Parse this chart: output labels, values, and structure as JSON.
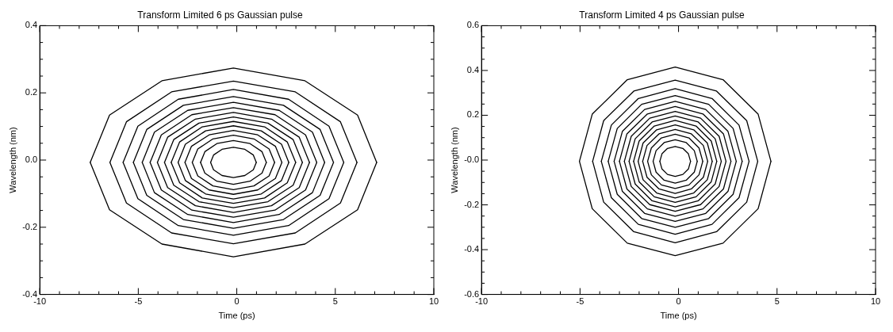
{
  "chart_data": [
    {
      "type": "line",
      "title": "Transform Limited 6 ps Gaussian pulse",
      "xlabel": "Time (ps)",
      "ylabel": "Wavelength (nm)",
      "marker": "none",
      "xlim": [
        -10,
        10
      ],
      "ylim": [
        -0.4,
        0.4
      ],
      "xticks": [
        -10,
        {
          "value": -9,
          "label": null
        },
        {
          "value": -8,
          "label": null
        },
        {
          "value": -7,
          "label": null
        },
        {
          "value": -6,
          "label": null
        },
        -5,
        {
          "value": -4,
          "label": null
        },
        {
          "value": -3,
          "label": null
        },
        {
          "value": -2,
          "label": null
        },
        {
          "value": -1,
          "label": null
        },
        0,
        {
          "value": 1,
          "label": null
        },
        {
          "value": 2,
          "label": null
        },
        {
          "value": 3,
          "label": null
        },
        {
          "value": 4,
          "label": null
        },
        5,
        {
          "value": 6,
          "label": null
        },
        {
          "value": 7,
          "label": null
        },
        {
          "value": 8,
          "label": null
        },
        {
          "value": 9,
          "label": null
        },
        10
      ],
      "yticks": [
        -0.4,
        {
          "value": -0.35,
          "label": null
        },
        {
          "value": -0.3,
          "label": null
        },
        {
          "value": -0.25,
          "label": null
        },
        -0.2,
        {
          "value": -0.15,
          "label": null
        },
        {
          "value": -0.1,
          "label": null
        },
        {
          "value": -0.05,
          "label": null
        },
        {
          "value": 0,
          "label": "0.0"
        },
        {
          "value": 0.05,
          "label": null
        },
        {
          "value": 0.1,
          "label": null
        },
        {
          "value": 0.15,
          "label": null
        },
        0.2,
        {
          "value": 0.25,
          "label": null
        },
        {
          "value": 0.3,
          "label": null
        },
        {
          "value": 0.35,
          "label": null
        },
        0.4
      ],
      "series": [
        {
          "color": "#000000",
          "x": [
            -7.44,
            -6.46,
            -3.8,
            -0.17,
            3.46,
            6.13,
            7.1
          ],
          "values": [
            -0.007,
            0.134,
            0.236,
            0.274,
            0.236,
            0.134,
            -0.007
          ]
        },
        {
          "color": "#000000",
          "x": [
            -7.44,
            -6.46,
            -3.8,
            -0.17,
            3.46,
            6.13,
            7.1
          ],
          "values": [
            -0.007,
            -0.148,
            -0.25,
            -0.288,
            -0.25,
            -0.148,
            -0.007
          ]
        },
        {
          "color": "#000000",
          "x": [
            -6.44,
            -5.6,
            -3.31,
            -0.17,
            2.97,
            5.26,
            6.1
          ],
          "values": [
            -0.007,
            0.114,
            0.203,
            0.235,
            0.203,
            0.114,
            -0.007
          ]
        },
        {
          "color": "#000000",
          "x": [
            -6.44,
            -5.6,
            -3.31,
            -0.17,
            2.97,
            5.26,
            6.1
          ],
          "values": [
            -0.007,
            -0.128,
            -0.217,
            -0.249,
            -0.217,
            -0.128,
            -0.007
          ]
        },
        {
          "color": "#000000",
          "x": [
            -5.77,
            -5.02,
            -2.97,
            -0.17,
            2.63,
            4.68,
            5.43
          ],
          "values": [
            -0.007,
            0.101,
            0.181,
            0.21,
            0.181,
            0.101,
            -0.007
          ]
        },
        {
          "color": "#000000",
          "x": [
            -5.77,
            -5.02,
            -2.97,
            -0.17,
            2.63,
            4.68,
            5.43
          ],
          "values": [
            -0.007,
            -0.115,
            -0.195,
            -0.224,
            -0.195,
            -0.115,
            -0.007
          ]
        },
        {
          "color": "#000000",
          "x": [
            -5.25,
            -4.57,
            -2.71,
            -0.17,
            2.37,
            4.23,
            4.91
          ],
          "values": [
            -0.007,
            0.091,
            0.163,
            0.189,
            0.163,
            0.091,
            -0.007
          ]
        },
        {
          "color": "#000000",
          "x": [
            -5.25,
            -4.57,
            -2.71,
            -0.17,
            2.37,
            4.23,
            4.91
          ],
          "values": [
            -0.007,
            -0.105,
            -0.177,
            -0.203,
            -0.177,
            -0.105,
            -0.007
          ]
        },
        {
          "color": "#000000",
          "x": [
            -4.8,
            -4.18,
            -2.49,
            -0.17,
            2.15,
            3.84,
            4.46
          ],
          "values": [
            -0.007,
            0.083,
            0.148,
            0.172,
            0.148,
            0.083,
            -0.007
          ]
        },
        {
          "color": "#000000",
          "x": [
            -4.8,
            -4.18,
            -2.49,
            -0.17,
            2.15,
            3.84,
            4.46
          ],
          "values": [
            -0.007,
            -0.097,
            -0.162,
            -0.186,
            -0.162,
            -0.097,
            -0.007
          ]
        },
        {
          "color": "#000000",
          "x": [
            -4.4,
            -3.83,
            -2.28,
            -0.17,
            1.94,
            3.49,
            4.06
          ],
          "values": [
            -0.007,
            0.075,
            0.135,
            0.156,
            0.135,
            0.075,
            -0.007
          ]
        },
        {
          "color": "#000000",
          "x": [
            -4.4,
            -3.83,
            -2.28,
            -0.17,
            1.94,
            3.49,
            4.06
          ],
          "values": [
            -0.007,
            -0.089,
            -0.149,
            -0.17,
            -0.149,
            -0.089,
            -0.007
          ]
        },
        {
          "color": "#000000",
          "x": [
            -4.03,
            -3.51,
            -2.1,
            -0.17,
            1.76,
            3.17,
            3.69
          ],
          "values": [
            -0.007,
            0.068,
            0.122,
            0.142,
            0.122,
            0.068,
            -0.007
          ]
        },
        {
          "color": "#000000",
          "x": [
            -4.03,
            -3.51,
            -2.1,
            -0.17,
            1.76,
            3.17,
            3.69
          ],
          "values": [
            -0.007,
            -0.082,
            -0.136,
            -0.156,
            -0.136,
            -0.082,
            -0.007
          ]
        },
        {
          "color": "#000000",
          "x": [
            -3.67,
            -3.2,
            -1.92,
            -0.17,
            1.58,
            2.86,
            3.33
          ],
          "values": [
            -0.007,
            0.061,
            0.11,
            0.128,
            0.11,
            0.061,
            -0.007
          ]
        },
        {
          "color": "#000000",
          "x": [
            -3.67,
            -3.2,
            -1.92,
            -0.17,
            1.58,
            2.86,
            3.33
          ],
          "values": [
            -0.007,
            -0.075,
            -0.124,
            -0.142,
            -0.124,
            -0.075,
            -0.007
          ]
        },
        {
          "color": "#000000",
          "x": [
            -3.33,
            -2.9,
            -1.75,
            -0.17,
            1.41,
            2.56,
            2.99
          ],
          "values": [
            -0.007,
            0.054,
            0.099,
            0.115,
            0.099,
            0.054,
            -0.007
          ]
        },
        {
          "color": "#000000",
          "x": [
            -3.33,
            -2.9,
            -1.75,
            -0.17,
            1.41,
            2.56,
            2.99
          ],
          "values": [
            -0.007,
            -0.068,
            -0.113,
            -0.129,
            -0.113,
            -0.068,
            -0.007
          ]
        },
        {
          "color": "#000000",
          "x": [
            -2.98,
            -2.61,
            -1.58,
            -0.17,
            1.24,
            2.27,
            2.64
          ],
          "values": [
            -0.007,
            0.047,
            0.087,
            0.102,
            0.087,
            0.047,
            -0.007
          ]
        },
        {
          "color": "#000000",
          "x": [
            -2.98,
            -2.61,
            -1.58,
            -0.17,
            1.24,
            2.27,
            2.64
          ],
          "values": [
            -0.007,
            -0.061,
            -0.101,
            -0.116,
            -0.101,
            -0.061,
            -0.007
          ]
        },
        {
          "color": "#000000",
          "x": [
            -2.63,
            -2.3,
            -1.4,
            -0.17,
            1.06,
            1.96,
            2.29
          ],
          "values": [
            -0.007,
            0.041,
            0.075,
            0.088,
            0.075,
            0.041,
            -0.007
          ]
        },
        {
          "color": "#000000",
          "x": [
            -2.63,
            -2.3,
            -1.4,
            -0.17,
            1.06,
            1.96,
            2.29
          ],
          "values": [
            -0.007,
            -0.055,
            -0.089,
            -0.102,
            -0.089,
            -0.055,
            -0.007
          ]
        },
        {
          "color": "#000000",
          "x": [
            -2.26,
            -1.98,
            -1.21,
            -0.17,
            0.87,
            1.64,
            1.92
          ],
          "values": [
            -0.007,
            0.033,
            0.063,
            0.074,
            0.063,
            0.033,
            -0.007
          ]
        },
        {
          "color": "#000000",
          "x": [
            -2.26,
            -1.98,
            -1.21,
            -0.17,
            0.87,
            1.64,
            1.92
          ],
          "values": [
            -0.007,
            -0.047,
            -0.077,
            -0.088,
            -0.077,
            -0.047,
            -0.007
          ]
        },
        {
          "color": "#000000",
          "x": [
            -1.84,
            -1.62,
            -1.01,
            -0.17,
            0.67,
            1.28,
            1.5
          ],
          "values": [
            -0.007,
            0.025,
            0.049,
            0.058,
            0.049,
            0.025,
            -0.007
          ]
        },
        {
          "color": "#000000",
          "x": [
            -1.84,
            -1.62,
            -1.01,
            -0.17,
            0.67,
            1.28,
            1.5
          ],
          "values": [
            -0.007,
            -0.039,
            -0.063,
            -0.072,
            -0.063,
            -0.039,
            -0.007
          ]
        },
        {
          "color": "#000000",
          "x": [
            -1.33,
            -1.18,
            -0.75,
            -0.17,
            0.41,
            0.84,
            0.99
          ],
          "values": [
            -0.007,
            0.015,
            0.032,
            0.038,
            0.032,
            0.015,
            -0.007
          ]
        },
        {
          "color": "#000000",
          "x": [
            -1.33,
            -1.18,
            -0.75,
            -0.17,
            0.41,
            0.84,
            0.99
          ],
          "values": [
            -0.007,
            -0.029,
            -0.046,
            -0.052,
            -0.046,
            -0.029,
            -0.007
          ]
        }
      ]
    },
    {
      "type": "line",
      "title": "Transform Limited 4 ps Gaussian pulse",
      "xlabel": "Time (ps)",
      "ylabel": "Wavelength (nm)",
      "marker": "none",
      "xlim": [
        -10,
        10
      ],
      "ylim": [
        -0.6,
        0.6
      ],
      "xticks": [
        -10,
        {
          "value": -9,
          "label": null
        },
        {
          "value": -8,
          "label": null
        },
        {
          "value": -7,
          "label": null
        },
        {
          "value": -6,
          "label": null
        },
        -5,
        {
          "value": -4,
          "label": null
        },
        {
          "value": -3,
          "label": null
        },
        {
          "value": -2,
          "label": null
        },
        {
          "value": -1,
          "label": null
        },
        0,
        {
          "value": 1,
          "label": null
        },
        {
          "value": 2,
          "label": null
        },
        {
          "value": 3,
          "label": null
        },
        {
          "value": 4,
          "label": null
        },
        5,
        {
          "value": 6,
          "label": null
        },
        {
          "value": 7,
          "label": null
        },
        {
          "value": 8,
          "label": null
        },
        {
          "value": 9,
          "label": null
        },
        10
      ],
      "yticks": [
        -0.6,
        {
          "value": -0.55,
          "label": null
        },
        {
          "value": -0.5,
          "label": null
        },
        {
          "value": -0.45,
          "label": null
        },
        -0.4,
        {
          "value": -0.35,
          "label": null
        },
        {
          "value": -0.3,
          "label": null
        },
        {
          "value": -0.25,
          "label": null
        },
        -0.2,
        {
          "value": -0.15,
          "label": null
        },
        {
          "value": -0.1,
          "label": null
        },
        {
          "value": -0.05,
          "label": null
        },
        {
          "value": 0,
          "label": "-0.0"
        },
        {
          "value": 0.05,
          "label": null
        },
        {
          "value": 0.1,
          "label": null
        },
        {
          "value": 0.15,
          "label": null
        },
        0.2,
        {
          "value": 0.25,
          "label": null
        },
        {
          "value": 0.3,
          "label": null
        },
        {
          "value": 0.35,
          "label": null
        },
        0.4,
        {
          "value": 0.45,
          "label": null
        },
        {
          "value": 0.5,
          "label": null
        },
        {
          "value": 0.55,
          "label": null
        },
        0.6
      ],
      "series": [
        {
          "color": "#000000",
          "x": [
            -5.03,
            -4.38,
            -2.6,
            -0.17,
            2.26,
            4.04,
            4.69
          ],
          "values": [
            -0.006,
            0.205,
            0.359,
            0.415,
            0.359,
            0.205,
            -0.006
          ]
        },
        {
          "color": "#000000",
          "x": [
            -5.03,
            -4.38,
            -2.6,
            -0.17,
            2.26,
            4.04,
            4.69
          ],
          "values": [
            -0.006,
            -0.217,
            -0.371,
            -0.427,
            -0.371,
            -0.217,
            -0.006
          ]
        },
        {
          "color": "#000000",
          "x": [
            -4.36,
            -3.8,
            -2.27,
            -0.17,
            1.93,
            3.46,
            4.02
          ],
          "values": [
            -0.006,
            0.176,
            0.308,
            0.357,
            0.308,
            0.176,
            -0.006
          ]
        },
        {
          "color": "#000000",
          "x": [
            -4.36,
            -3.8,
            -2.27,
            -0.17,
            1.93,
            3.46,
            4.02
          ],
          "values": [
            -0.006,
            -0.188,
            -0.32,
            -0.369,
            -0.32,
            -0.188,
            -0.006
          ]
        },
        {
          "color": "#000000",
          "x": [
            -3.92,
            -3.41,
            -2.04,
            -0.17,
            1.7,
            3.07,
            3.58
          ],
          "values": [
            -0.006,
            0.156,
            0.275,
            0.319,
            0.275,
            0.156,
            -0.006
          ]
        },
        {
          "color": "#000000",
          "x": [
            -3.92,
            -3.41,
            -2.04,
            -0.17,
            1.7,
            3.07,
            3.58
          ],
          "values": [
            -0.006,
            -0.168,
            -0.287,
            -0.331,
            -0.287,
            -0.168,
            -0.006
          ]
        },
        {
          "color": "#000000",
          "x": [
            -3.57,
            -3.11,
            -1.87,
            -0.17,
            1.53,
            2.77,
            3.23
          ],
          "values": [
            -0.006,
            0.141,
            0.249,
            0.288,
            0.249,
            0.141,
            -0.006
          ]
        },
        {
          "color": "#000000",
          "x": [
            -3.57,
            -3.11,
            -1.87,
            -0.17,
            1.53,
            2.77,
            3.23
          ],
          "values": [
            -0.006,
            -0.153,
            -0.261,
            -0.3,
            -0.261,
            -0.153,
            -0.006
          ]
        },
        {
          "color": "#000000",
          "x": [
            -3.27,
            -2.85,
            -1.72,
            -0.17,
            1.38,
            2.51,
            2.93
          ],
          "values": [
            -0.006,
            0.128,
            0.226,
            0.262,
            0.226,
            0.128,
            -0.006
          ]
        },
        {
          "color": "#000000",
          "x": [
            -3.27,
            -2.85,
            -1.72,
            -0.17,
            1.38,
            2.51,
            2.93
          ],
          "values": [
            -0.006,
            -0.14,
            -0.238,
            -0.274,
            -0.238,
            -0.14,
            -0.006
          ]
        },
        {
          "color": "#000000",
          "x": [
            -3.0,
            -2.62,
            -1.58,
            -0.17,
            1.24,
            2.28,
            2.66
          ],
          "values": [
            -0.006,
            0.117,
            0.206,
            0.239,
            0.206,
            0.117,
            -0.006
          ]
        },
        {
          "color": "#000000",
          "x": [
            -3.0,
            -2.62,
            -1.58,
            -0.17,
            1.24,
            2.28,
            2.66
          ],
          "values": [
            -0.006,
            -0.129,
            -0.218,
            -0.251,
            -0.218,
            -0.129,
            -0.006
          ]
        },
        {
          "color": "#000000",
          "x": [
            -2.75,
            -2.4,
            -1.46,
            -0.17,
            1.12,
            2.06,
            2.41
          ],
          "values": [
            -0.006,
            0.106,
            0.187,
            0.217,
            0.187,
            0.106,
            -0.006
          ]
        },
        {
          "color": "#000000",
          "x": [
            -2.75,
            -2.4,
            -1.46,
            -0.17,
            1.12,
            2.06,
            2.41
          ],
          "values": [
            -0.006,
            -0.118,
            -0.199,
            -0.229,
            -0.199,
            -0.118,
            -0.006
          ]
        },
        {
          "color": "#000000",
          "x": [
            -2.51,
            -2.2,
            -1.34,
            -0.17,
            1.0,
            1.86,
            2.17
          ],
          "values": [
            -0.006,
            0.095,
            0.17,
            0.197,
            0.17,
            0.095,
            -0.006
          ]
        },
        {
          "color": "#000000",
          "x": [
            -2.51,
            -2.2,
            -1.34,
            -0.17,
            1.0,
            1.86,
            2.17
          ],
          "values": [
            -0.006,
            -0.107,
            -0.182,
            -0.209,
            -0.182,
            -0.107,
            -0.006
          ]
        },
        {
          "color": "#000000",
          "x": [
            -2.28,
            -2.0,
            -1.23,
            -0.17,
            0.89,
            1.66,
            1.94
          ],
          "values": [
            -0.006,
            0.085,
            0.152,
            0.177,
            0.152,
            0.085,
            -0.006
          ]
        },
        {
          "color": "#000000",
          "x": [
            -2.28,
            -2.0,
            -1.23,
            -0.17,
            0.89,
            1.66,
            1.94
          ],
          "values": [
            -0.006,
            -0.097,
            -0.164,
            -0.189,
            -0.164,
            -0.097,
            -0.006
          ]
        },
        {
          "color": "#000000",
          "x": [
            -2.05,
            -1.8,
            -1.11,
            -0.17,
            0.77,
            1.46,
            1.71
          ],
          "values": [
            -0.006,
            0.076,
            0.135,
            0.157,
            0.135,
            0.076,
            -0.006
          ]
        },
        {
          "color": "#000000",
          "x": [
            -2.05,
            -1.8,
            -1.11,
            -0.17,
            0.77,
            1.46,
            1.71
          ],
          "values": [
            -0.006,
            -0.088,
            -0.147,
            -0.169,
            -0.147,
            -0.088,
            -0.006
          ]
        },
        {
          "color": "#000000",
          "x": [
            -1.82,
            -1.6,
            -0.99,
            -0.17,
            0.65,
            1.26,
            1.48
          ],
          "values": [
            -0.006,
            0.065,
            0.117,
            0.137,
            0.117,
            0.065,
            -0.006
          ]
        },
        {
          "color": "#000000",
          "x": [
            -1.82,
            -1.6,
            -0.99,
            -0.17,
            0.65,
            1.26,
            1.48
          ],
          "values": [
            -0.006,
            -0.077,
            -0.129,
            -0.149,
            -0.129,
            -0.077,
            -0.006
          ]
        },
        {
          "color": "#000000",
          "x": [
            -1.57,
            -1.38,
            -0.87,
            -0.17,
            0.53,
            1.04,
            1.23
          ],
          "values": [
            -0.006,
            0.054,
            0.099,
            0.115,
            0.099,
            0.054,
            -0.006
          ]
        },
        {
          "color": "#000000",
          "x": [
            -1.57,
            -1.38,
            -0.87,
            -0.17,
            0.53,
            1.04,
            1.23
          ],
          "values": [
            -0.006,
            -0.066,
            -0.111,
            -0.127,
            -0.111,
            -0.066,
            -0.006
          ]
        },
        {
          "color": "#000000",
          "x": [
            -1.29,
            -1.14,
            -0.73,
            -0.17,
            0.39,
            0.8,
            0.95
          ],
          "values": [
            -0.006,
            0.042,
            0.078,
            0.091,
            0.078,
            0.042,
            -0.006
          ]
        },
        {
          "color": "#000000",
          "x": [
            -1.29,
            -1.14,
            -0.73,
            -0.17,
            0.39,
            0.8,
            0.95
          ],
          "values": [
            -0.006,
            -0.054,
            -0.09,
            -0.103,
            -0.09,
            -0.054,
            -0.006
          ]
        },
        {
          "color": "#000000",
          "x": [
            -0.95,
            -0.84,
            -0.56,
            -0.17,
            0.22,
            0.5,
            0.61
          ],
          "values": [
            -0.006,
            0.028,
            0.052,
            0.061,
            0.052,
            0.028,
            -0.006
          ]
        },
        {
          "color": "#000000",
          "x": [
            -0.95,
            -0.84,
            -0.56,
            -0.17,
            0.22,
            0.5,
            0.61
          ],
          "values": [
            -0.006,
            -0.04,
            -0.064,
            -0.073,
            -0.064,
            -0.04,
            -0.006
          ]
        }
      ]
    }
  ]
}
